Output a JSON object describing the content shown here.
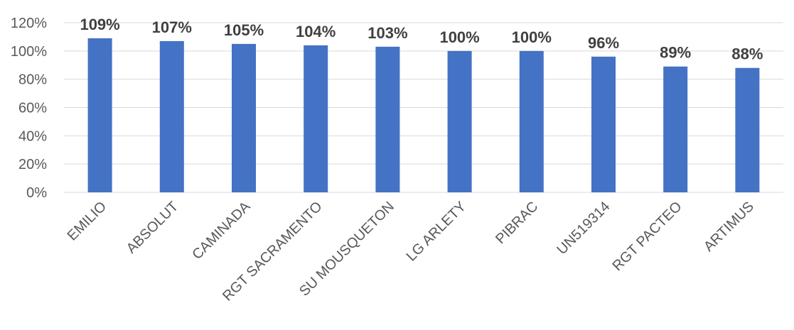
{
  "chart_data": {
    "type": "bar",
    "categories": [
      "EMILIO",
      "ABSOLUT",
      "CAMINADA",
      "RGT SACRAMENTO",
      "SU MOUSQUETON",
      "LG ARLETY",
      "PIBRAC",
      "UN519314",
      "RGT PACTEO",
      "ARTIMUS"
    ],
    "values": [
      109,
      107,
      105,
      104,
      103,
      100,
      100,
      96,
      89,
      88
    ],
    "data_labels": [
      "109%",
      "107%",
      "105%",
      "104%",
      "103%",
      "100%",
      "100%",
      "96%",
      "89%",
      "88%"
    ],
    "yticks": [
      "0%",
      "20%",
      "40%",
      "60%",
      "80%",
      "100%",
      "120%"
    ],
    "ylim": [
      0,
      120
    ],
    "grid": true,
    "legend": "none",
    "bar_color": "#4472C4"
  }
}
